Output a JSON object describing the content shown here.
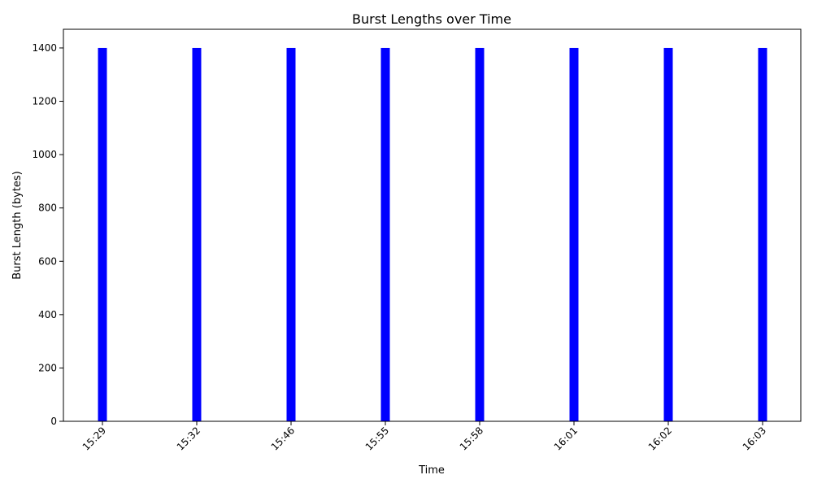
{
  "chart_data": {
    "type": "bar",
    "title": "Burst Lengths over Time",
    "xlabel": "Time",
    "ylabel": "Burst Length (bytes)",
    "categories": [
      "15:29",
      "15:32",
      "15:46",
      "15:55",
      "15:58",
      "16:01",
      "16:02",
      "16:03"
    ],
    "values": [
      1400,
      1400,
      1400,
      1400,
      1400,
      1400,
      1400,
      1400
    ],
    "ylim": [
      0,
      1470
    ],
    "yticks": [
      0,
      200,
      400,
      600,
      800,
      1000,
      1200,
      1400
    ],
    "bar_color": "#0000ff",
    "grid": false,
    "x_tick_rotation_deg": 45
  }
}
